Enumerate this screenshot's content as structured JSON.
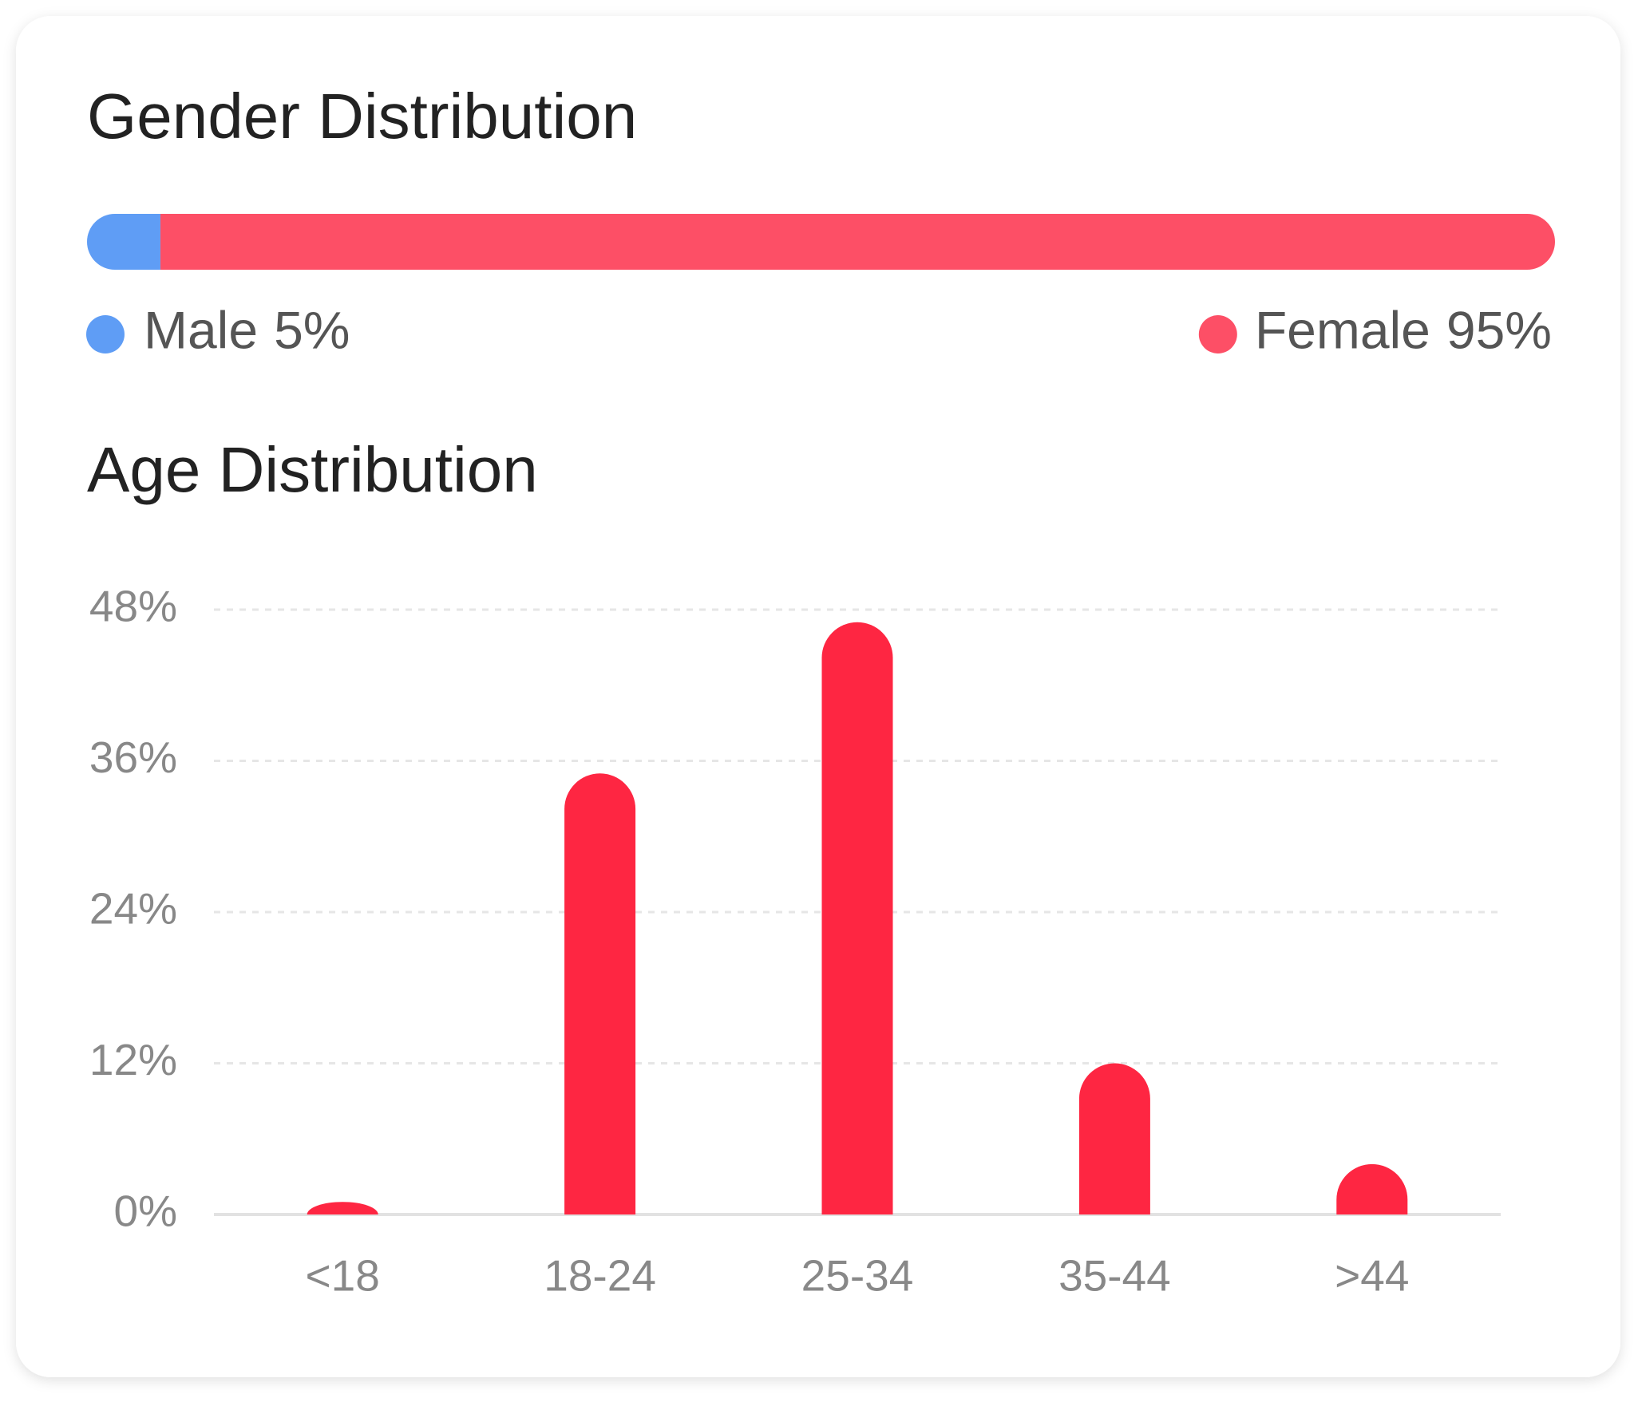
{
  "chart_data": [
    {
      "type": "stacked-bar",
      "title": "Gender Distribution",
      "series": [
        {
          "name": "Male",
          "color": "#5f9df5",
          "values": [
            5
          ],
          "value_labels": [
            "5%"
          ]
        },
        {
          "name": "Female",
          "color": "#fd4f66",
          "values": [
            95
          ],
          "value_labels": [
            "95%"
          ]
        }
      ]
    },
    {
      "type": "bar",
      "title": "Age Distribution",
      "categories": [
        "<18",
        "18-24",
        "25-34",
        "35-44",
        ">44"
      ],
      "values": [
        1,
        35,
        47,
        12,
        4
      ],
      "color": "#fe2642",
      "ylim": [
        0,
        48
      ],
      "yticks": [
        {
          "value": 0,
          "label": "0%"
        },
        {
          "value": 12,
          "label": "12%"
        },
        {
          "value": 24,
          "label": "24%"
        },
        {
          "value": 36,
          "label": "36%"
        },
        {
          "value": 48,
          "label": "48%"
        }
      ],
      "grid": true
    }
  ]
}
